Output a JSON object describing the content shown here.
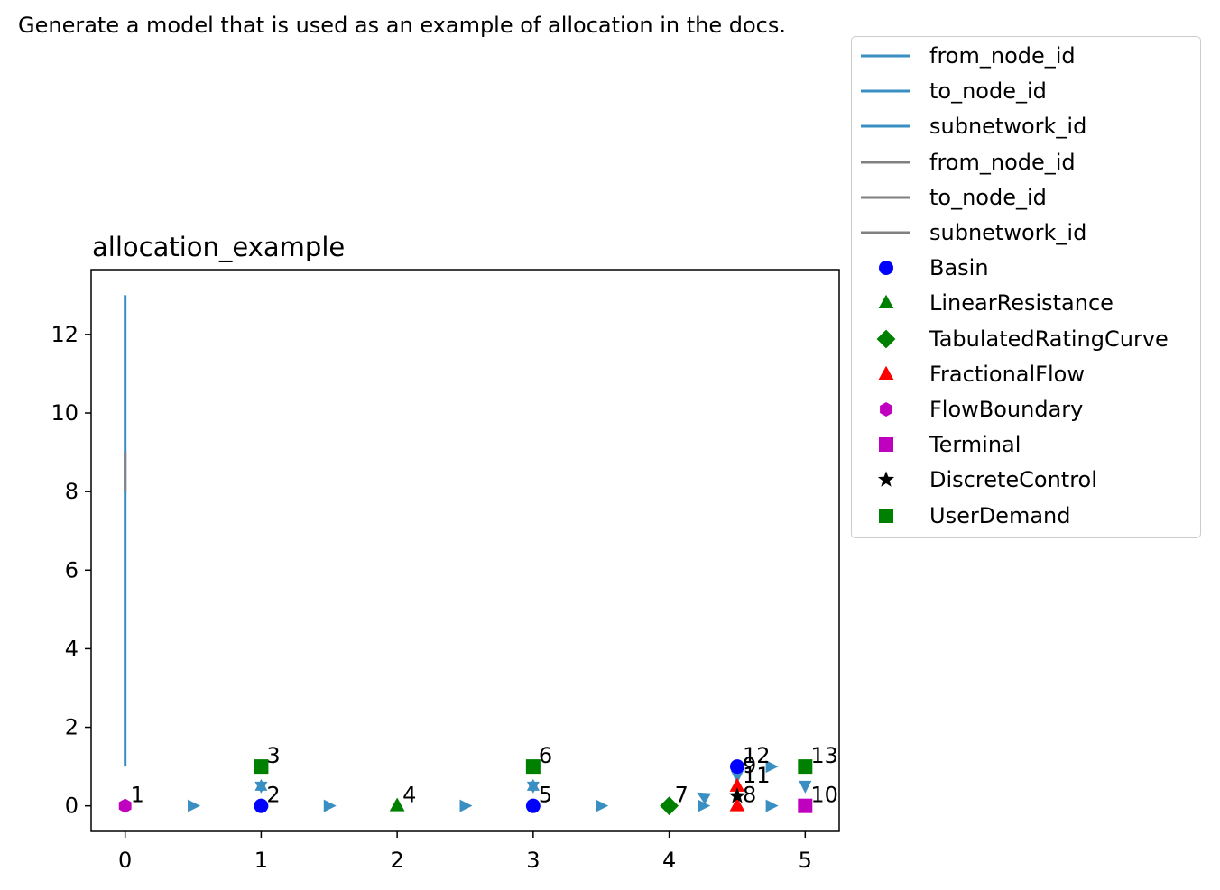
{
  "figure": {
    "suptitle": "Generate a model that is used as an example of allocation in the docs."
  },
  "chart_data": {
    "type": "scatter",
    "title": "allocation_example",
    "xlabel": "",
    "ylabel": "",
    "xlim": [
      -0.25,
      5.25
    ],
    "ylim": [
      -0.65,
      13.65
    ],
    "xticks": [
      0,
      1,
      2,
      3,
      4,
      5
    ],
    "yticks": [
      0,
      2,
      4,
      6,
      8,
      10,
      12
    ],
    "grid": false,
    "legend_position": "outside-right",
    "line_series": [
      {
        "name": "from_node_id",
        "color": "#3a8fc2",
        "x": [
          0,
          0
        ],
        "y": [
          1,
          13
        ]
      },
      {
        "name": "to_node_id",
        "color": "#3a8fc2",
        "x": [],
        "y": []
      },
      {
        "name": "subnetwork_id",
        "color": "#3a8fc2",
        "x": [],
        "y": []
      },
      {
        "name": "from_node_id",
        "color": "#808080",
        "x": [
          0,
          0
        ],
        "y": [
          8,
          9
        ]
      },
      {
        "name": "to_node_id",
        "color": "#808080",
        "x": [],
        "y": []
      },
      {
        "name": "subnetwork_id",
        "color": "#808080",
        "x": [],
        "y": []
      }
    ],
    "node_series": [
      {
        "name": "Basin",
        "marker": "circle",
        "color": "#0000ff",
        "points": [
          {
            "x": 1,
            "y": 0
          },
          {
            "x": 3,
            "y": 0
          },
          {
            "x": 4.5,
            "y": 1
          }
        ]
      },
      {
        "name": "LinearResistance",
        "marker": "triangle-up",
        "color": "#008000",
        "points": [
          {
            "x": 2,
            "y": 0
          }
        ]
      },
      {
        "name": "TabulatedRatingCurve",
        "marker": "diamond",
        "color": "#008000",
        "points": [
          {
            "x": 4,
            "y": 0
          }
        ]
      },
      {
        "name": "FractionalFlow",
        "marker": "triangle-up",
        "color": "#ff0000",
        "points": [
          {
            "x": 4.5,
            "y": 0
          },
          {
            "x": 4.5,
            "y": 0.5
          }
        ]
      },
      {
        "name": "FlowBoundary",
        "marker": "hexagon",
        "color": "#bf00bf",
        "points": [
          {
            "x": 0,
            "y": 0
          }
        ]
      },
      {
        "name": "Terminal",
        "marker": "square",
        "color": "#bf00bf",
        "points": [
          {
            "x": 5,
            "y": 0
          }
        ]
      },
      {
        "name": "DiscreteControl",
        "marker": "star",
        "color": "#000000",
        "points": [
          {
            "x": 4.5,
            "y": 0.25
          }
        ]
      },
      {
        "name": "UserDemand",
        "marker": "square",
        "color": "#008000",
        "points": [
          {
            "x": 1,
            "y": 1
          },
          {
            "x": 3,
            "y": 1
          },
          {
            "x": 5,
            "y": 1
          }
        ]
      }
    ],
    "edge_arrows": [
      {
        "x": 0.5,
        "y": 0,
        "dir": "right"
      },
      {
        "x": 1.5,
        "y": 0,
        "dir": "right"
      },
      {
        "x": 2.5,
        "y": 0,
        "dir": "right"
      },
      {
        "x": 3.5,
        "y": 0,
        "dir": "right"
      },
      {
        "x": 4.25,
        "y": 0,
        "dir": "right"
      },
      {
        "x": 4.25,
        "y": 0.25,
        "dir": "up-left"
      },
      {
        "x": 4.75,
        "y": 0,
        "dir": "right"
      },
      {
        "x": 4.75,
        "y": 1,
        "dir": "right"
      },
      {
        "x": 5,
        "y": 0.5,
        "dir": "down"
      },
      {
        "x": 4.5,
        "y": 0.75,
        "dir": "down"
      },
      {
        "x": 1,
        "y": 0.5,
        "dir": "bidir"
      },
      {
        "x": 3,
        "y": 0.5,
        "dir": "bidir"
      }
    ],
    "arrow_color": "#3a8fc2",
    "node_labels": [
      {
        "text": "1",
        "x": 0,
        "y": 0
      },
      {
        "text": "2",
        "x": 1,
        "y": 0
      },
      {
        "text": "3",
        "x": 1,
        "y": 1
      },
      {
        "text": "4",
        "x": 2,
        "y": 0
      },
      {
        "text": "5",
        "x": 3,
        "y": 0
      },
      {
        "text": "6",
        "x": 3,
        "y": 1
      },
      {
        "text": "7",
        "x": 4,
        "y": 0
      },
      {
        "text": "8",
        "x": 4.5,
        "y": 0
      },
      {
        "text": "9",
        "x": 4.5,
        "y": 0.75
      },
      {
        "text": "10",
        "x": 5,
        "y": 0
      },
      {
        "text": "11",
        "x": 4.5,
        "y": 0.5
      },
      {
        "text": "12",
        "x": 4.5,
        "y": 1
      },
      {
        "text": "13",
        "x": 5,
        "y": 1
      }
    ]
  }
}
